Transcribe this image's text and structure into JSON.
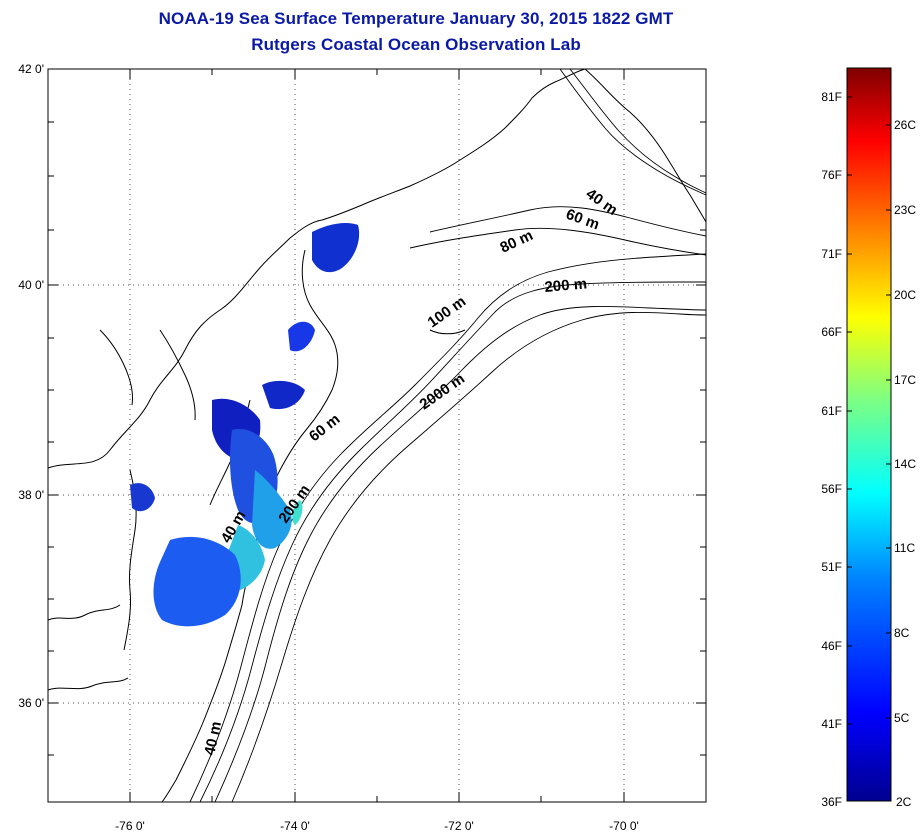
{
  "header": {
    "title_line1": "NOAA-19 Sea Surface Temperature January 30, 2015 1822 GMT",
    "title_line2": "Rutgers Coastal Ocean Observation Lab"
  },
  "map": {
    "lat_ticks": [
      "42 0'",
      "40 0'",
      "38 0'",
      "36 0'"
    ],
    "lon_ticks": [
      "-76 0'",
      "-74 0'",
      "-72 0'",
      "-70 0'"
    ],
    "contour_labels": [
      "40 m",
      "60 m",
      "80 m",
      "200 m",
      "100 m",
      "2000 m",
      "60 m",
      "40 m",
      "200 m",
      "40 m"
    ]
  },
  "colorbar": {
    "fahrenheit_labels": [
      "81F",
      "76F",
      "71F",
      "66F",
      "61F",
      "56F",
      "51F",
      "46F",
      "41F",
      "36F"
    ],
    "celsius_labels": [
      "26C",
      "23C",
      "20C",
      "17C",
      "14C",
      "11C",
      "8C",
      "5C",
      "2C"
    ],
    "colors": [
      "#00008f",
      "#0000ff",
      "#0080ff",
      "#00ffff",
      "#80ff80",
      "#ffff00",
      "#ff8000",
      "#ff0000",
      "#800000"
    ]
  }
}
